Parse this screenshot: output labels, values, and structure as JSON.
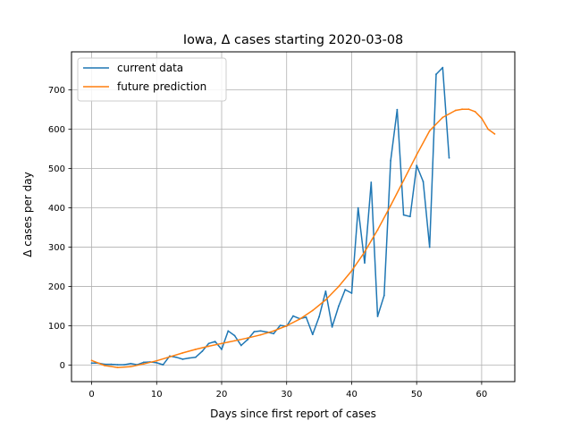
{
  "chart_data": {
    "type": "line",
    "title": "Iowa, Δ cases starting 2020-03-08",
    "xlabel": "Days since first report of cases",
    "ylabel": "Δ cases per day",
    "xlim": [
      -3.1,
      65.1
    ],
    "ylim": [
      -42,
      797
    ],
    "xticks": [
      0,
      10,
      20,
      30,
      40,
      50,
      60
    ],
    "yticks": [
      0,
      100,
      200,
      300,
      400,
      500,
      600,
      700
    ],
    "grid": true,
    "legend_position": "upper left",
    "series": [
      {
        "name": "current data",
        "color": "#1f77b4",
        "x": [
          0,
          1,
          2,
          3,
          4,
          5,
          6,
          7,
          8,
          9,
          10,
          11,
          12,
          13,
          14,
          15,
          16,
          17,
          18,
          19,
          20,
          21,
          22,
          23,
          24,
          25,
          26,
          27,
          28,
          29,
          30,
          31,
          32,
          33,
          34,
          35,
          36,
          37,
          38,
          39,
          40,
          41,
          42,
          43,
          44,
          45,
          46,
          47,
          48,
          49,
          50,
          51,
          52,
          53,
          54,
          55
        ],
        "y": [
          5,
          5,
          2,
          2,
          1,
          1,
          4,
          1,
          7,
          8,
          6,
          1,
          23,
          20,
          15,
          18,
          20,
          35,
          55,
          60,
          40,
          87,
          75,
          50,
          65,
          85,
          87,
          84,
          80,
          101,
          99,
          125,
          118,
          122,
          78,
          123,
          188,
          97,
          150,
          192,
          183,
          400,
          260,
          465,
          124,
          177,
          520,
          650,
          382,
          378,
          508,
          467,
          300,
          740,
          757,
          527
        ]
      },
      {
        "name": "future prediction",
        "color": "#ff7f0e",
        "x": [
          0,
          2,
          4,
          6,
          8,
          10,
          12,
          14,
          16,
          18,
          20,
          22,
          24,
          26,
          28,
          30,
          32,
          34,
          36,
          38,
          40,
          42,
          44,
          46,
          48,
          50,
          52,
          54,
          56,
          57,
          58,
          59,
          60,
          61,
          62
        ],
        "y": [
          12,
          -1,
          -6,
          -4,
          3,
          11,
          21,
          31,
          40,
          48,
          55,
          62,
          69,
          77,
          87,
          100,
          117,
          139,
          166,
          200,
          240,
          288,
          344,
          406,
          470,
          535,
          596,
          630,
          648,
          651,
          651,
          645,
          628,
          600,
          588
        ]
      }
    ]
  }
}
